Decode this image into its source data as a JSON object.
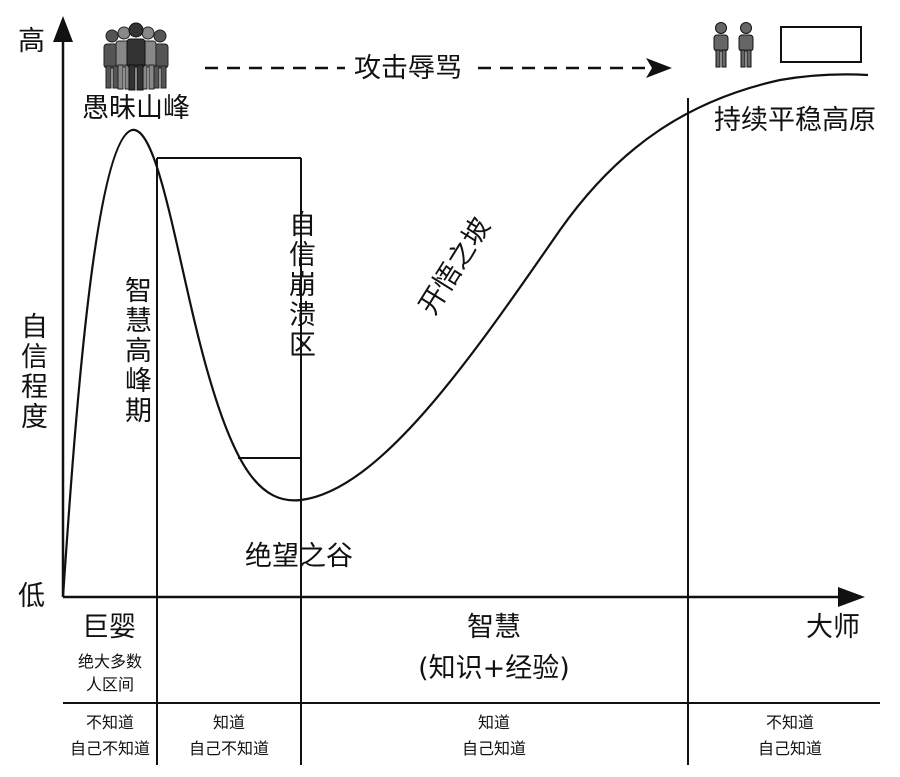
{
  "axis": {
    "y_high": "高",
    "y_low": "低",
    "y_title": "自信程度"
  },
  "peaks": {
    "stupid_peak": "愚昧山峰",
    "wisdom_peak_period": "智慧高峰期",
    "confidence_collapse": "自信崩溃区",
    "valley": "绝望之谷",
    "slope": "开悟之坡",
    "plateau": "持续平稳高原",
    "attack": "攻击辱骂"
  },
  "stages": {
    "giant_baby": "巨婴",
    "majority": "绝大多数",
    "majority_2": "人区间",
    "wisdom": "智慧",
    "wisdom_sub": "(知识+经验)",
    "master": "大师"
  },
  "quadrants": [
    {
      "line1": "不知道",
      "line2": "自己不知道"
    },
    {
      "line1": "知道",
      "line2": "自己不知道"
    },
    {
      "line1": "知道",
      "line2": "自己知道"
    },
    {
      "line1": "不知道",
      "line2": "自己知道"
    }
  ],
  "colors": {
    "ink": "#111111",
    "figure_gray": "#777777"
  }
}
